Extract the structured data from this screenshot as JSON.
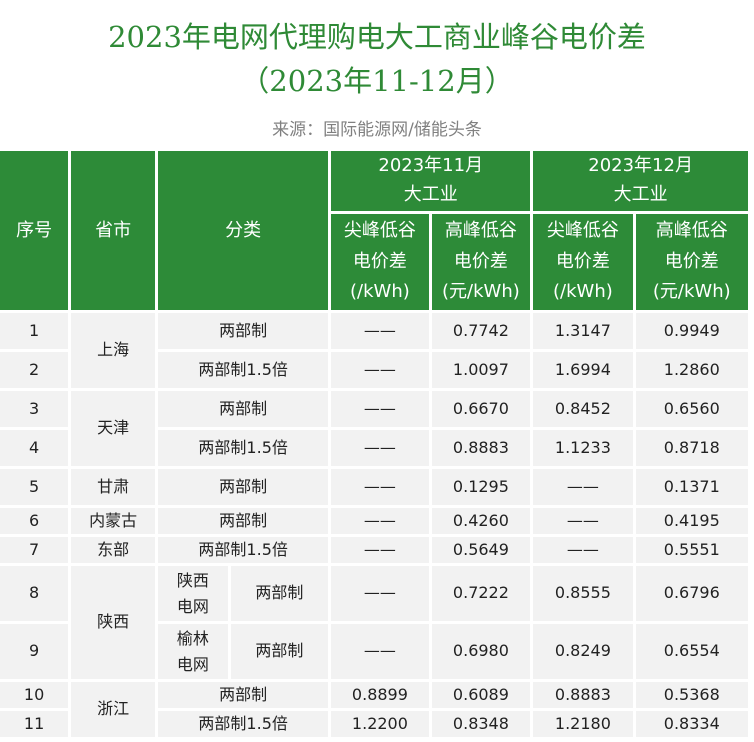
{
  "title": {
    "line1": "2023年电网代理购电大工商业峰谷电价差",
    "line2": "（2023年11-12月）",
    "source": "来源：国际能源网/储能头条"
  },
  "header": {
    "seq": "序号",
    "province": "省市",
    "category": "分类",
    "months": [
      {
        "label": "2023年11月",
        "sub": "大工业"
      },
      {
        "label": "2023年12月",
        "sub": "大工业"
      }
    ],
    "cols": [
      "尖峰低谷电价差(/kWh)",
      "高峰低谷电价差(元/kWh)",
      "尖峰低谷电价差(/kWh)",
      "高峰低谷电价差(元/kWh)"
    ],
    "col_lines": [
      [
        "尖峰低谷",
        "电价差",
        "(/kWh)"
      ],
      [
        "高峰低谷",
        "电价差",
        "(元/kWh)"
      ],
      [
        "尖峰低谷",
        "电价差",
        "(/kWh)"
      ],
      [
        "高峰低谷",
        "电价差",
        "(元/kWh)"
      ]
    ]
  },
  "rows": [
    {
      "n": "1",
      "prov": "上海",
      "cat": "两部制",
      "v": [
        "——",
        "0.7742",
        "1.3147",
        "0.9949"
      ]
    },
    {
      "n": "2",
      "cat": "两部制1.5倍",
      "v": [
        "——",
        "1.0097",
        "1.6994",
        "1.2860"
      ]
    },
    {
      "n": "3",
      "prov": "天津",
      "cat": "两部制",
      "v": [
        "——",
        "0.6670",
        "0.8452",
        "0.6560"
      ]
    },
    {
      "n": "4",
      "cat": "两部制1.5倍",
      "v": [
        "——",
        "0.8883",
        "1.1233",
        "0.8718"
      ]
    },
    {
      "n": "5",
      "prov": "甘肃",
      "cat": "两部制",
      "v": [
        "——",
        "0.1295",
        "——",
        "0.1371"
      ]
    },
    {
      "n": "6",
      "prov": "内蒙古",
      "cat": "两部制",
      "v": [
        "——",
        "0.4260",
        "——",
        "0.4195"
      ]
    },
    {
      "n": "7",
      "prov": "东部",
      "cat": "两部制1.5倍",
      "v": [
        "——",
        "0.5649",
        "——",
        "0.5551"
      ]
    },
    {
      "n": "8",
      "prov": "陕西",
      "grid": "陕西电网",
      "cat": "两部制",
      "v": [
        "——",
        "0.7222",
        "0.8555",
        "0.6796"
      ]
    },
    {
      "n": "9",
      "grid": "榆林电网",
      "cat": "两部制",
      "v": [
        "——",
        "0.6980",
        "0.8249",
        "0.6554"
      ]
    },
    {
      "n": "10",
      "prov": "浙江",
      "cat": "两部制",
      "v": [
        "0.8899",
        "0.6089",
        "0.8883",
        "0.5368"
      ]
    },
    {
      "n": "11",
      "cat": "两部制1.5倍",
      "v": [
        "1.2200",
        "0.8348",
        "1.2180",
        "0.8334"
      ]
    }
  ]
}
